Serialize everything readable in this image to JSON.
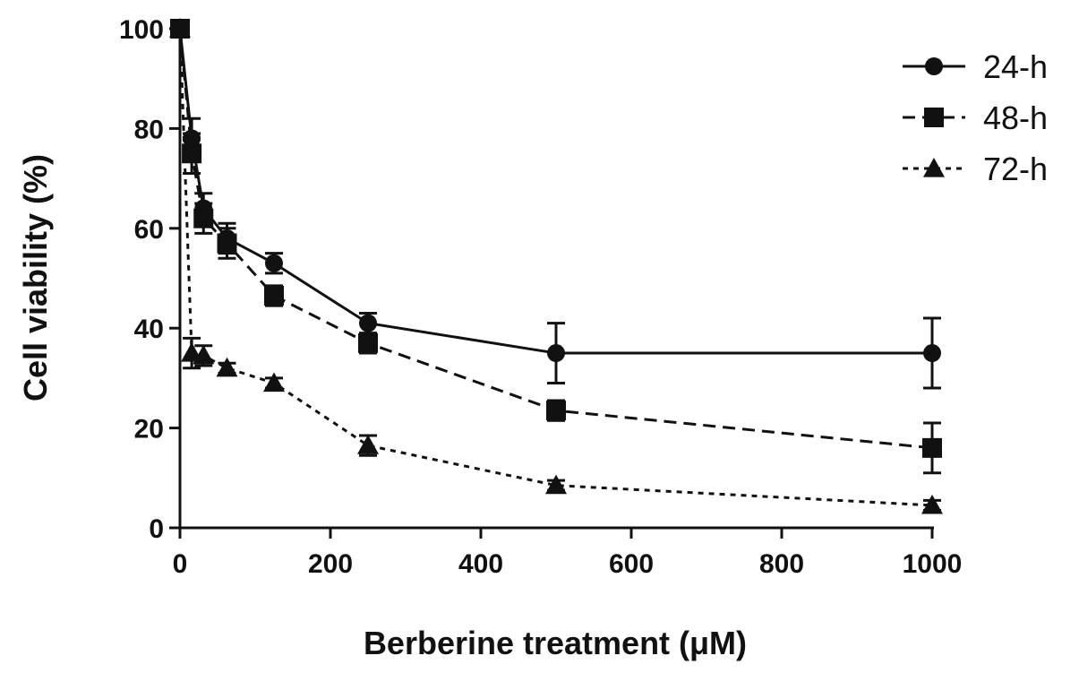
{
  "chart_data": {
    "type": "line",
    "xlabel": "Berberine treatment (μM)",
    "ylabel": "Cell viability (%)",
    "xlim": [
      0,
      1000
    ],
    "ylim": [
      0,
      100
    ],
    "xticks": [
      0,
      200,
      400,
      600,
      800,
      1000
    ],
    "yticks": [
      0,
      20,
      40,
      60,
      80,
      100
    ],
    "grid": false,
    "legend_position": "top-right",
    "x": [
      0,
      15.6,
      31.25,
      62.5,
      125,
      250,
      500,
      1000
    ],
    "series": [
      {
        "name": "24-h",
        "marker": "circle",
        "line_style": "solid",
        "values": [
          100,
          78,
          64,
          58,
          53,
          41,
          35,
          35
        ],
        "errors": [
          1,
          4,
          3,
          3,
          2,
          2,
          6,
          7
        ]
      },
      {
        "name": "48-h",
        "marker": "square",
        "line_style": "dashed",
        "values": [
          100,
          75,
          62,
          57,
          46.5,
          37,
          23.5,
          16
        ],
        "errors": [
          1,
          4,
          3,
          3,
          2,
          2,
          2,
          5
        ]
      },
      {
        "name": "72-h",
        "marker": "triangle",
        "line_style": "dotted",
        "values": [
          100,
          35,
          34.5,
          32,
          29,
          16.5,
          8.5,
          4.5
        ],
        "errors": [
          1,
          3,
          2,
          1,
          1,
          2,
          1,
          1
        ]
      }
    ]
  }
}
